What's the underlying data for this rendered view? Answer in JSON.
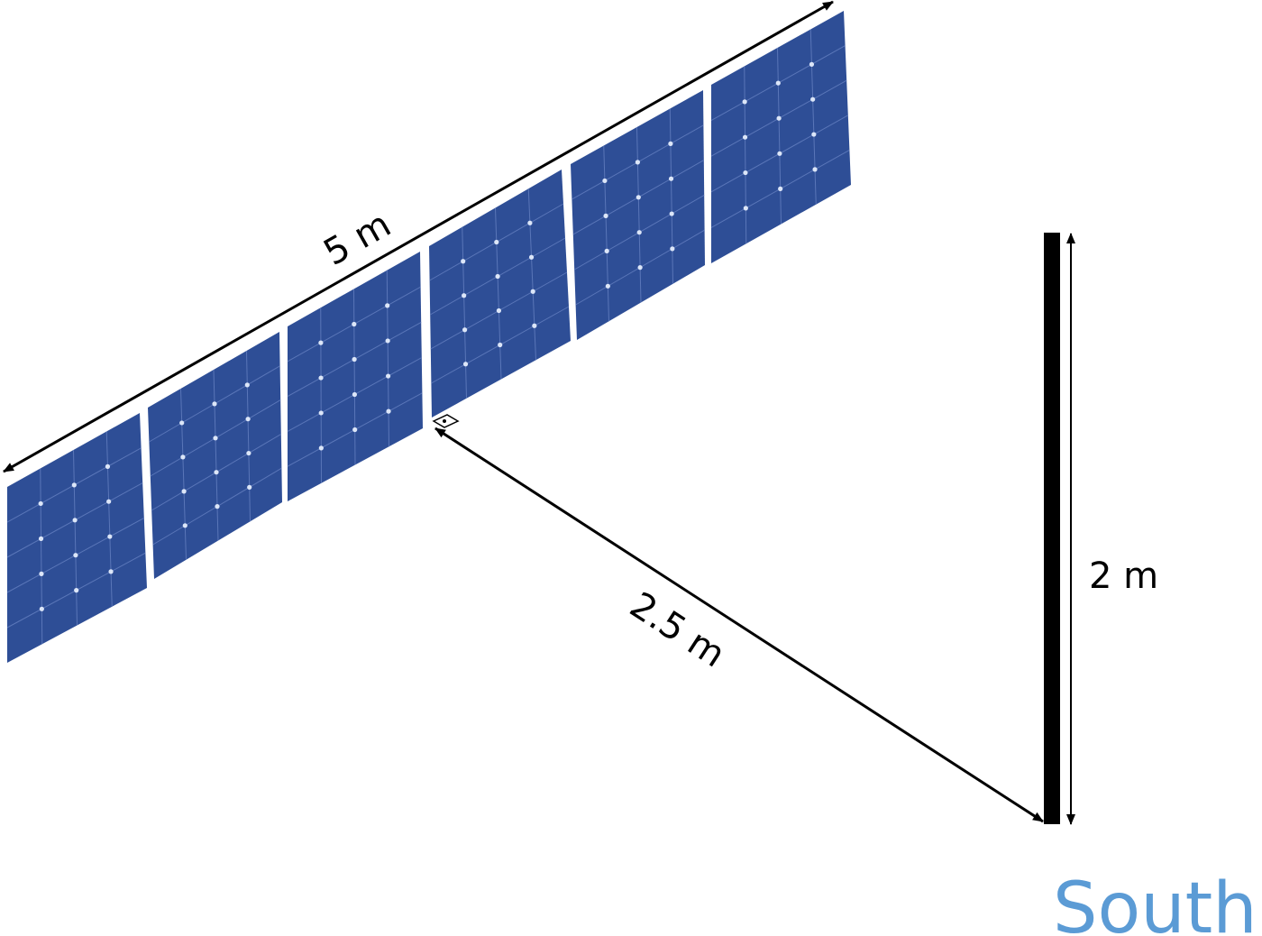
{
  "labels": {
    "panel_length": "5 m",
    "pole_distance": "2.5 m",
    "pole_height": "2 m",
    "direction": "South"
  },
  "scene": {
    "panel_count": 6,
    "cell_grid": {
      "columns": 4,
      "rows": 5
    }
  },
  "colors": {
    "panel_fill": "#2E4E96",
    "panel_grid": "#5A76B8",
    "cell_dot": "#DCE6F8",
    "pole": "#000000",
    "arrow": "#000000",
    "direction_text": "#5B9BD5",
    "background": "#FFFFFF"
  }
}
